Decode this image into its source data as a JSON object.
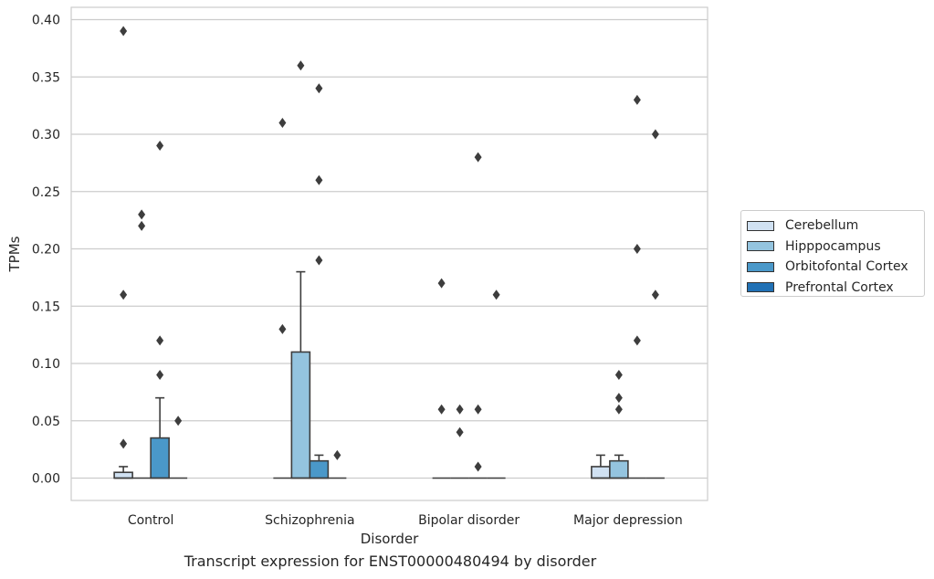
{
  "caption": "Transcript expression for ENST00000480494 by disorder",
  "chart_data": {
    "type": "box",
    "xlabel": "Disorder",
    "ylabel": "TPMs",
    "ylim": [
      -0.019,
      0.41
    ],
    "yticks": [
      0.0,
      0.05,
      0.1,
      0.15,
      0.2,
      0.25,
      0.3,
      0.35,
      0.4
    ],
    "ytick_labels": [
      "0.00",
      "0.05",
      "0.10",
      "0.15",
      "0.20",
      "0.25",
      "0.30",
      "0.35",
      "0.40"
    ],
    "grid": "horizontal",
    "legend_position": "right",
    "categories": [
      "Control",
      "Schizophrenia",
      "Bipolar disorder",
      "Major depression"
    ],
    "series": [
      {
        "name": "Cerebellum",
        "color": "#d0e1f2",
        "boxes": [
          {
            "q1": 0.0,
            "median": 0.0,
            "q3": 0.005,
            "whisker_low": 0.0,
            "whisker_high": 0.01,
            "outliers": [
              0.03,
              0.16,
              0.39
            ]
          },
          {
            "q1": 0.0,
            "median": 0.0,
            "q3": 0.0,
            "whisker_low": 0.0,
            "whisker_high": 0.0,
            "outliers": []
          },
          {
            "q1": 0.0,
            "median": 0.0,
            "q3": 0.0,
            "whisker_low": 0.0,
            "whisker_high": 0.0,
            "outliers": []
          },
          {
            "q1": 0.0,
            "median": 0.0,
            "q3": 0.01,
            "whisker_low": 0.0,
            "whisker_high": 0.02,
            "outliers": []
          }
        ]
      },
      {
        "name": "Hipppocampus",
        "color": "#94c4df",
        "boxes": [
          {
            "q1": 0.0,
            "median": 0.0,
            "q3": 0.0,
            "whisker_low": 0.0,
            "whisker_high": 0.0,
            "outliers": [
              0.22,
              0.23
            ]
          },
          {
            "q1": 0.0,
            "median": 0.0,
            "q3": 0.11,
            "whisker_low": 0.0,
            "whisker_high": 0.18,
            "outliers": [
              0.36
            ]
          },
          {
            "q1": 0.0,
            "median": 0.0,
            "q3": 0.0,
            "whisker_low": 0.0,
            "whisker_high": 0.0,
            "outliers": [
              0.04,
              0.06
            ]
          },
          {
            "q1": 0.0,
            "median": 0.0,
            "q3": 0.015,
            "whisker_low": 0.0,
            "whisker_high": 0.02,
            "outliers": [
              0.06,
              0.07,
              0.09
            ]
          }
        ]
      },
      {
        "name": "Orbitofontal Cortex",
        "color": "#4a98c9",
        "boxes": [
          {
            "q1": 0.0,
            "median": 0.0,
            "q3": 0.035,
            "whisker_low": 0.0,
            "whisker_high": 0.07,
            "outliers": [
              0.09,
              0.12,
              0.29
            ]
          },
          {
            "q1": 0.0,
            "median": 0.0,
            "q3": 0.015,
            "whisker_low": 0.0,
            "whisker_high": 0.02,
            "outliers": [
              0.19,
              0.26,
              0.34
            ]
          },
          {
            "q1": 0.0,
            "median": 0.0,
            "q3": 0.0,
            "whisker_low": 0.0,
            "whisker_high": 0.0,
            "outliers": [
              0.01,
              0.06,
              0.28
            ]
          },
          {
            "q1": 0.0,
            "median": 0.0,
            "q3": 0.0,
            "whisker_low": 0.0,
            "whisker_high": 0.0,
            "outliers": [
              0.12,
              0.2,
              0.33
            ]
          }
        ]
      },
      {
        "name": "Prefrontal Cortex",
        "color": "#2171b5",
        "boxes": [
          {
            "q1": 0.0,
            "median": 0.0,
            "q3": 0.0,
            "whisker_low": 0.0,
            "whisker_high": 0.0,
            "outliers": [
              0.05
            ]
          },
          {
            "q1": 0.0,
            "median": 0.0,
            "q3": 0.0,
            "whisker_low": 0.0,
            "whisker_high": 0.0,
            "outliers": [
              0.02
            ]
          },
          {
            "q1": 0.0,
            "median": 0.0,
            "q3": 0.0,
            "whisker_low": 0.0,
            "whisker_high": 0.0,
            "outliers": [
              0.16
            ]
          },
          {
            "q1": 0.0,
            "median": 0.0,
            "q3": 0.0,
            "whisker_low": 0.0,
            "whisker_high": 0.0,
            "outliers": [
              0.16,
              0.3
            ]
          }
        ]
      }
    ],
    "extra_outliers": [
      {
        "category": "Schizophrenia",
        "series": "Cerebellum",
        "values": [
          0.13,
          0.31
        ]
      },
      {
        "category": "Bipolar disorder",
        "series": "Cerebellum",
        "values": [
          0.06,
          0.17
        ]
      }
    ]
  }
}
